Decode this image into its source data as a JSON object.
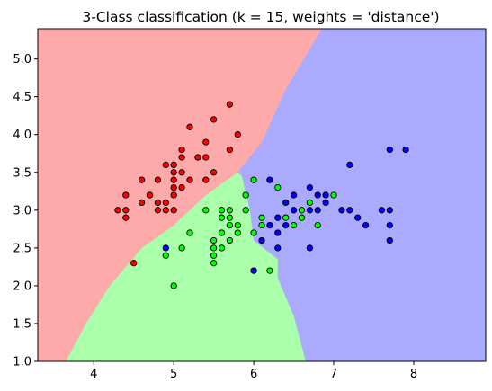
{
  "chart_data": {
    "type": "scatter",
    "title": "3-Class classification (k = 15, weights = 'distance')",
    "xlabel": "",
    "ylabel": "",
    "xlim": [
      3.3,
      8.9
    ],
    "ylim": [
      1.0,
      5.4
    ],
    "x_ticks": [
      4,
      5,
      6,
      7,
      8
    ],
    "y_ticks": [
      1.0,
      1.5,
      2.0,
      2.5,
      3.0,
      3.5,
      4.0,
      4.5,
      5.0
    ],
    "grid": false,
    "legend": "none",
    "regions": [
      {
        "class": 0,
        "color": "#ffaaaa"
      },
      {
        "class": 1,
        "color": "#aaffaa"
      },
      {
        "class": 2,
        "color": "#aaaaff"
      }
    ],
    "decision_boundaries": {
      "red_upper": [
        [
          3.65,
          1.0
        ],
        [
          3.9,
          1.5
        ],
        [
          4.2,
          2.0
        ],
        [
          4.6,
          2.5
        ],
        [
          5.0,
          2.8
        ],
        [
          5.4,
          3.2
        ],
        [
          5.8,
          3.5
        ],
        [
          6.1,
          3.9
        ],
        [
          6.4,
          4.6
        ],
        [
          6.85,
          5.4
        ]
      ],
      "green_blue": [
        [
          6.65,
          1.0
        ],
        [
          6.5,
          1.6
        ],
        [
          6.3,
          2.1
        ],
        [
          6.3,
          2.35
        ],
        [
          6.0,
          2.6
        ],
        [
          5.95,
          3.0
        ],
        [
          5.85,
          3.45
        ]
      ]
    },
    "series": [
      {
        "class": 0,
        "color": "#ff0000",
        "x": [
          4.3,
          4.4,
          4.4,
          4.4,
          4.5,
          4.6,
          4.6,
          4.7,
          4.7,
          4.8,
          4.8,
          4.8,
          4.9,
          4.9,
          4.9,
          5.0,
          5.0,
          5.0,
          5.0,
          5.0,
          5.0,
          5.1,
          5.1,
          5.1,
          5.1,
          5.2,
          5.2,
          5.3,
          5.4,
          5.4,
          5.4,
          5.5,
          5.5,
          5.7,
          5.7,
          5.8
        ],
        "y": [
          3.0,
          2.9,
          3.0,
          3.2,
          2.3,
          3.1,
          3.4,
          3.2,
          3.2,
          3.0,
          3.1,
          3.4,
          3.0,
          3.1,
          3.6,
          3.0,
          3.2,
          3.3,
          3.4,
          3.5,
          3.6,
          3.3,
          3.5,
          3.7,
          3.8,
          3.4,
          4.1,
          3.7,
          3.4,
          3.7,
          3.9,
          3.5,
          4.2,
          3.8,
          4.4,
          4.0
        ]
      },
      {
        "class": 1,
        "color": "#00ff00",
        "x": [
          4.9,
          5.0,
          5.1,
          5.2,
          5.4,
          5.5,
          5.5,
          5.5,
          5.5,
          5.6,
          5.6,
          5.6,
          5.6,
          5.7,
          5.7,
          5.7,
          5.7,
          5.8,
          5.8,
          5.9,
          5.9,
          6.0,
          6.0,
          6.0,
          6.1,
          6.1,
          6.2,
          6.3,
          6.4,
          6.5,
          6.6,
          6.6,
          6.7,
          6.8,
          7.0
        ],
        "y": [
          2.4,
          2.0,
          2.5,
          2.7,
          3.0,
          2.3,
          2.4,
          2.5,
          2.6,
          2.5,
          2.7,
          2.9,
          3.0,
          2.6,
          2.8,
          2.9,
          3.0,
          2.7,
          2.8,
          3.0,
          3.2,
          2.2,
          2.7,
          3.4,
          2.8,
          2.9,
          2.2,
          3.3,
          2.9,
          2.8,
          2.9,
          3.0,
          3.1,
          2.8,
          3.2
        ]
      },
      {
        "class": 2,
        "color": "#0000ff",
        "x": [
          4.9,
          6.0,
          6.1,
          6.2,
          6.2,
          6.3,
          6.3,
          6.3,
          6.4,
          6.4,
          6.5,
          6.5,
          6.7,
          6.7,
          6.7,
          6.8,
          6.8,
          6.9,
          6.9,
          7.1,
          7.2,
          7.2,
          7.3,
          7.4,
          7.6,
          7.7,
          7.7,
          7.7,
          7.7,
          7.9
        ],
        "y": [
          2.5,
          2.2,
          2.6,
          2.8,
          3.4,
          2.5,
          2.7,
          2.9,
          2.8,
          3.1,
          3.0,
          3.2,
          2.5,
          3.0,
          3.3,
          3.0,
          3.2,
          3.1,
          3.2,
          3.0,
          3.0,
          3.6,
          2.9,
          2.8,
          3.0,
          2.6,
          2.8,
          3.0,
          3.8,
          3.8
        ]
      }
    ]
  }
}
